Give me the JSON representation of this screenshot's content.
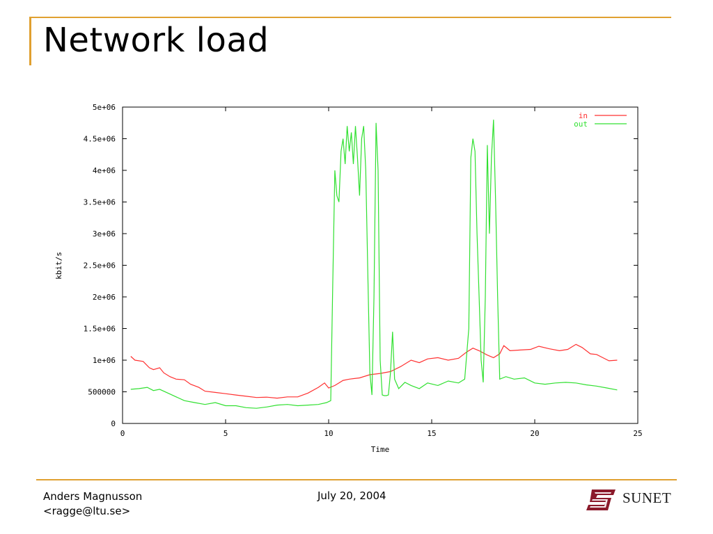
{
  "slide": {
    "title": "Network load",
    "footer_author_line1": "Anders Magnusson",
    "footer_author_line2": "<ragge@ltu.se>",
    "footer_date": "July 20, 2004",
    "logo_text": "SUNET",
    "logo_color": "#8b1a2b",
    "accent_color": "#e0a030"
  },
  "chart_data": {
    "type": "line",
    "title": "",
    "xlabel": "Time",
    "ylabel": "kbit/s",
    "xlim": [
      0,
      25
    ],
    "ylim": [
      0,
      5000000
    ],
    "xticks": [
      0,
      5,
      10,
      15,
      20,
      25
    ],
    "xtick_labels": [
      "0",
      "5",
      "10",
      "15",
      "20",
      "25"
    ],
    "yticks": [
      0,
      500000,
      1000000,
      1500000,
      2000000,
      2500000,
      3000000,
      3500000,
      4000000,
      4500000,
      5000000
    ],
    "ytick_labels": [
      "0",
      "500000",
      "1e+06",
      "1.5e+06",
      "2e+06",
      "2.5e+06",
      "3e+06",
      "3.5e+06",
      "4e+06",
      "4.5e+06",
      "5e+06"
    ],
    "grid": false,
    "legend_position": "top-right",
    "series": [
      {
        "name": "in",
        "color": "#ff3030",
        "points": [
          [
            0.4,
            1060000
          ],
          [
            0.6,
            1000000
          ],
          [
            1.0,
            980000
          ],
          [
            1.3,
            880000
          ],
          [
            1.5,
            850000
          ],
          [
            1.8,
            880000
          ],
          [
            2.0,
            800000
          ],
          [
            2.3,
            740000
          ],
          [
            2.6,
            700000
          ],
          [
            3.0,
            690000
          ],
          [
            3.3,
            620000
          ],
          [
            3.7,
            570000
          ],
          [
            4.0,
            510000
          ],
          [
            4.5,
            490000
          ],
          [
            5.0,
            470000
          ],
          [
            5.5,
            450000
          ],
          [
            6.0,
            430000
          ],
          [
            6.5,
            410000
          ],
          [
            7.0,
            415000
          ],
          [
            7.5,
            400000
          ],
          [
            8.0,
            420000
          ],
          [
            8.5,
            420000
          ],
          [
            9.0,
            480000
          ],
          [
            9.5,
            570000
          ],
          [
            9.8,
            640000
          ],
          [
            10.0,
            560000
          ],
          [
            10.3,
            600000
          ],
          [
            10.7,
            680000
          ],
          [
            11.0,
            700000
          ],
          [
            11.5,
            720000
          ],
          [
            12.0,
            770000
          ],
          [
            12.5,
            790000
          ],
          [
            13.0,
            820000
          ],
          [
            13.5,
            900000
          ],
          [
            14.0,
            1000000
          ],
          [
            14.4,
            960000
          ],
          [
            14.8,
            1020000
          ],
          [
            15.3,
            1040000
          ],
          [
            15.8,
            1000000
          ],
          [
            16.3,
            1030000
          ],
          [
            16.7,
            1130000
          ],
          [
            17.0,
            1190000
          ],
          [
            17.3,
            1150000
          ],
          [
            17.7,
            1080000
          ],
          [
            18.0,
            1040000
          ],
          [
            18.3,
            1100000
          ],
          [
            18.5,
            1230000
          ],
          [
            18.8,
            1150000
          ],
          [
            19.3,
            1160000
          ],
          [
            19.8,
            1170000
          ],
          [
            20.2,
            1220000
          ],
          [
            20.7,
            1180000
          ],
          [
            21.2,
            1150000
          ],
          [
            21.6,
            1170000
          ],
          [
            22.0,
            1250000
          ],
          [
            22.3,
            1200000
          ],
          [
            22.7,
            1100000
          ],
          [
            23.0,
            1090000
          ],
          [
            23.3,
            1040000
          ],
          [
            23.6,
            990000
          ],
          [
            24.0,
            1000000
          ]
        ]
      },
      {
        "name": "out",
        "color": "#30e030",
        "points": [
          [
            0.4,
            540000
          ],
          [
            0.8,
            550000
          ],
          [
            1.2,
            570000
          ],
          [
            1.5,
            520000
          ],
          [
            1.8,
            540000
          ],
          [
            2.2,
            480000
          ],
          [
            2.6,
            420000
          ],
          [
            3.0,
            360000
          ],
          [
            3.5,
            330000
          ],
          [
            4.0,
            300000
          ],
          [
            4.5,
            330000
          ],
          [
            5.0,
            280000
          ],
          [
            5.5,
            280000
          ],
          [
            6.0,
            250000
          ],
          [
            6.5,
            240000
          ],
          [
            7.0,
            260000
          ],
          [
            7.5,
            290000
          ],
          [
            8.0,
            300000
          ],
          [
            8.5,
            280000
          ],
          [
            9.0,
            290000
          ],
          [
            9.5,
            300000
          ],
          [
            9.9,
            330000
          ],
          [
            10.1,
            360000
          ],
          [
            10.2,
            2200000
          ],
          [
            10.3,
            4000000
          ],
          [
            10.4,
            3600000
          ],
          [
            10.5,
            3500000
          ],
          [
            10.6,
            4300000
          ],
          [
            10.7,
            4500000
          ],
          [
            10.8,
            4100000
          ],
          [
            10.9,
            4700000
          ],
          [
            11.0,
            4300000
          ],
          [
            11.1,
            4600000
          ],
          [
            11.2,
            4100000
          ],
          [
            11.3,
            4700000
          ],
          [
            11.4,
            4200000
          ],
          [
            11.5,
            3600000
          ],
          [
            11.6,
            4500000
          ],
          [
            11.7,
            4700000
          ],
          [
            11.8,
            4000000
          ],
          [
            11.9,
            2400000
          ],
          [
            12.0,
            800000
          ],
          [
            12.1,
            450000
          ],
          [
            12.2,
            2000000
          ],
          [
            12.3,
            4750000
          ],
          [
            12.4,
            4000000
          ],
          [
            12.5,
            1000000
          ],
          [
            12.6,
            450000
          ],
          [
            12.7,
            440000
          ],
          [
            12.8,
            440000
          ],
          [
            12.9,
            450000
          ],
          [
            13.0,
            800000
          ],
          [
            13.1,
            1450000
          ],
          [
            13.2,
            700000
          ],
          [
            13.4,
            550000
          ],
          [
            13.7,
            650000
          ],
          [
            14.0,
            600000
          ],
          [
            14.4,
            550000
          ],
          [
            14.8,
            640000
          ],
          [
            15.3,
            600000
          ],
          [
            15.8,
            670000
          ],
          [
            16.3,
            640000
          ],
          [
            16.6,
            700000
          ],
          [
            16.8,
            1500000
          ],
          [
            16.9,
            4200000
          ],
          [
            17.0,
            4500000
          ],
          [
            17.1,
            4300000
          ],
          [
            17.2,
            3000000
          ],
          [
            17.3,
            2000000
          ],
          [
            17.4,
            1000000
          ],
          [
            17.5,
            650000
          ],
          [
            17.6,
            2000000
          ],
          [
            17.7,
            4400000
          ],
          [
            17.8,
            3000000
          ],
          [
            17.9,
            4200000
          ],
          [
            18.0,
            4800000
          ],
          [
            18.1,
            3500000
          ],
          [
            18.2,
            2000000
          ],
          [
            18.3,
            700000
          ],
          [
            18.6,
            740000
          ],
          [
            19.0,
            700000
          ],
          [
            19.5,
            720000
          ],
          [
            20.0,
            640000
          ],
          [
            20.5,
            620000
          ],
          [
            21.0,
            640000
          ],
          [
            21.5,
            650000
          ],
          [
            22.0,
            640000
          ],
          [
            22.5,
            610000
          ],
          [
            23.0,
            590000
          ],
          [
            23.5,
            560000
          ],
          [
            24.0,
            530000
          ]
        ]
      }
    ]
  }
}
